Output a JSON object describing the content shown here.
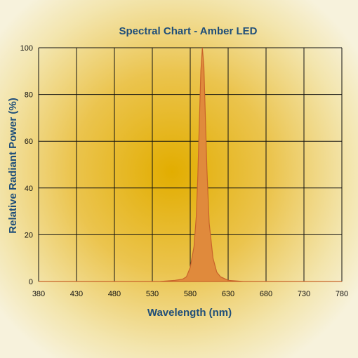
{
  "chart_data": {
    "type": "area",
    "title": "Spectral Chart - Amber LED",
    "xlabel": "Wavelength (nm)",
    "ylabel": "Relative Radiant Power (%)",
    "xlim": [
      380,
      780
    ],
    "ylim": [
      0,
      100
    ],
    "x_ticks": [
      "380",
      "430",
      "480",
      "530",
      "580",
      "630",
      "680",
      "730",
      "780"
    ],
    "y_ticks": [
      "0",
      "20",
      "40",
      "60",
      "80",
      "100"
    ],
    "grid": true,
    "legend": "none",
    "series": [
      {
        "color": "#e08a3c",
        "x": [
          380,
          540,
          560,
          570,
          575,
          580,
          585,
          588,
          590,
          592,
          594,
          596,
          598,
          600,
          602,
          605,
          610,
          615,
          620,
          630,
          650,
          780
        ],
        "values": [
          0,
          0,
          0.5,
          1,
          2,
          6,
          15,
          28,
          45,
          68,
          90,
          100,
          92,
          70,
          48,
          25,
          10,
          4,
          2,
          0.5,
          0,
          0
        ]
      }
    ]
  },
  "colors": {
    "background_center": "#e8b100",
    "background_edge": "#f6f1d8",
    "grid": "#111111",
    "title": "#1f4e79",
    "fill": "#e08a3c",
    "stroke": "#c8632a"
  }
}
